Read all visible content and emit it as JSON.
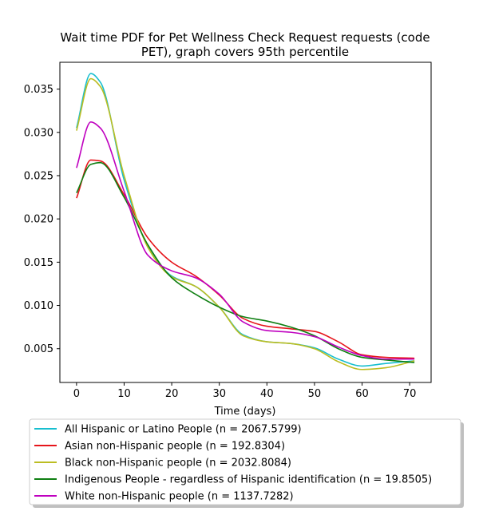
{
  "chart_data": {
    "type": "line",
    "title": "Wait time PDF for Pet Wellness Check Request  requests (code PET), graph covers 95th percentile",
    "title_lines": [
      "Wait time PDF for Pet Wellness Check Request  requests (code",
      "PET), graph covers 95th percentile"
    ],
    "xlabel": "Time (days)",
    "ylabel": "",
    "xlim": [
      -3.5,
      74.5
    ],
    "ylim": [
      0.0011,
      0.0381
    ],
    "xticks": [
      0,
      10,
      20,
      30,
      40,
      50,
      60,
      70
    ],
    "yticks": [
      0.005,
      0.01,
      0.015,
      0.02,
      0.025,
      0.03,
      0.035
    ],
    "ytick_labels": [
      "0.005",
      "0.010",
      "0.015",
      "0.020",
      "0.025",
      "0.030",
      "0.035"
    ],
    "grid": false,
    "legend_position": "below plot",
    "x": [
      0,
      3,
      5,
      10,
      15,
      20,
      25,
      30,
      35,
      40,
      45,
      50,
      55,
      60,
      65,
      71
    ],
    "series": [
      {
        "name": "All Hispanic or Latino People (n = 2067.5799)",
        "color": "#17becf",
        "values": [
          0.0305,
          0.0368,
          0.0358,
          0.0245,
          0.0168,
          0.0134,
          0.0122,
          0.0098,
          0.0066,
          0.0058,
          0.0056,
          0.0051,
          0.0038,
          0.003,
          0.0033,
          0.0036
        ]
      },
      {
        "name": "Asian non-Hispanic people (n = 192.8304)",
        "color": "#e6151b",
        "values": [
          0.0224,
          0.0268,
          0.0267,
          0.0228,
          0.0178,
          0.015,
          0.0134,
          0.0112,
          0.0085,
          0.0076,
          0.0073,
          0.007,
          0.0058,
          0.0043,
          0.004,
          0.0039
        ]
      },
      {
        "name": "Black non-Hispanic people (n = 2032.8084)",
        "color": "#bcbd22",
        "values": [
          0.0302,
          0.0362,
          0.0353,
          0.025,
          0.0167,
          0.0133,
          0.0122,
          0.0098,
          0.0065,
          0.0058,
          0.0056,
          0.005,
          0.0035,
          0.0026,
          0.0028,
          0.0036
        ]
      },
      {
        "name": "Indigenous People - regardless of Hispanic identification (n = 19.8505)",
        "color": "#0f7f12",
        "values": [
          0.023,
          0.0263,
          0.0265,
          0.0225,
          0.017,
          0.0132,
          0.0113,
          0.0098,
          0.0087,
          0.0082,
          0.0075,
          0.0065,
          0.005,
          0.004,
          0.0037,
          0.0034
        ]
      },
      {
        "name": "White non-Hispanic people (n = 1137.7282)",
        "color": "#bf00bf",
        "values": [
          0.0259,
          0.0312,
          0.0305,
          0.0232,
          0.0158,
          0.014,
          0.0132,
          0.0113,
          0.0081,
          0.0071,
          0.0069,
          0.0064,
          0.0052,
          0.0042,
          0.0038,
          0.0038
        ]
      }
    ]
  }
}
